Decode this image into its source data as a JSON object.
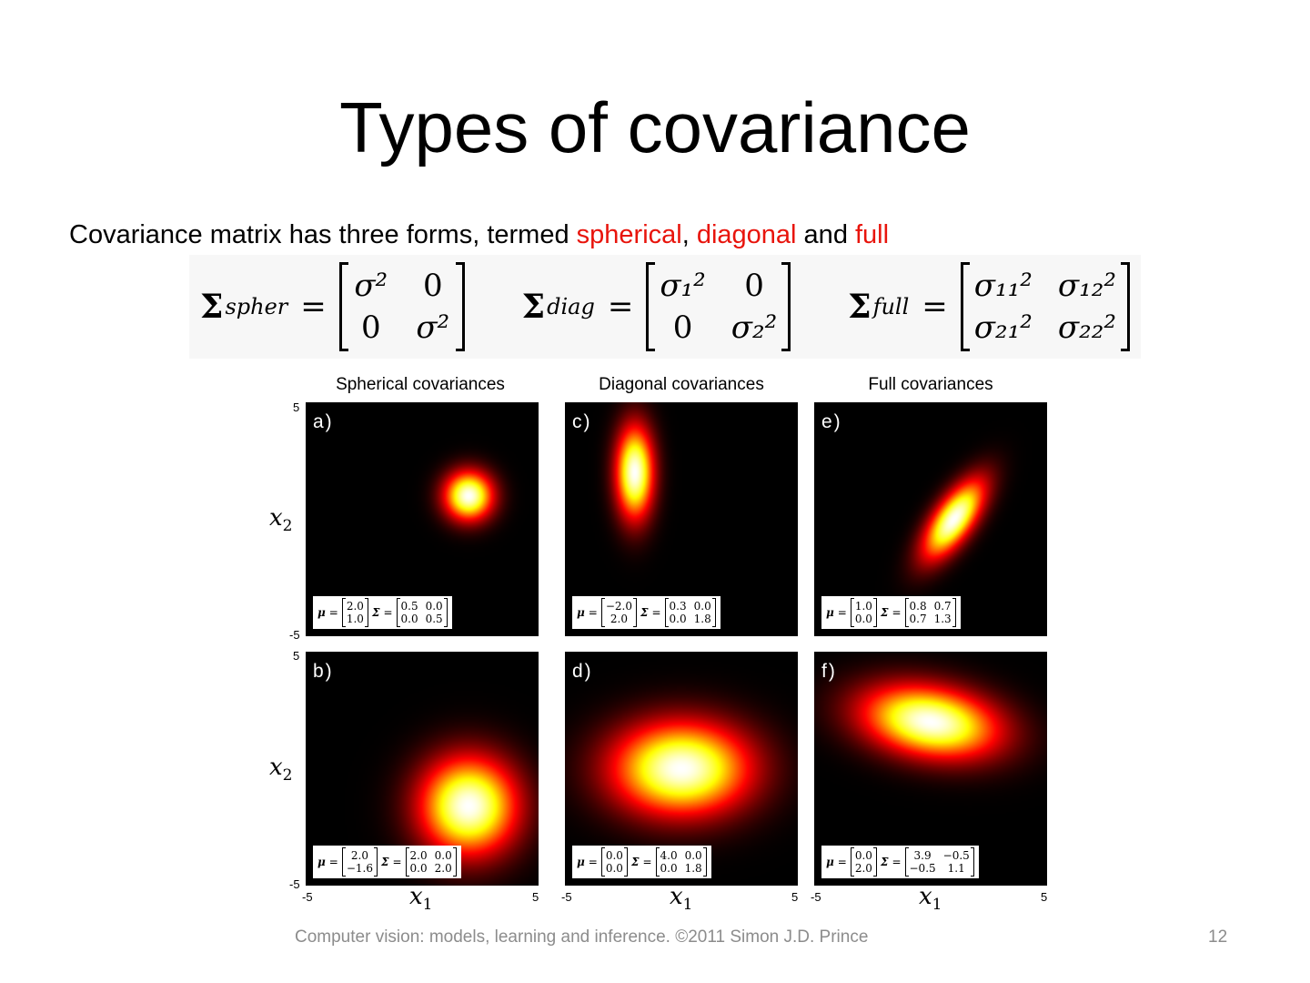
{
  "slide": {
    "title": "Types of covariance",
    "bullet": {
      "prefix": "Covariance matrix has three forms, termed ",
      "term1": "spherical",
      "sep1": ", ",
      "term2": "diagonal",
      "sep2": " and ",
      "term3": "full",
      "highlight_color": "#e8140c"
    },
    "equations": [
      {
        "symbol": "Σ",
        "subscript": "spher",
        "equals": "=",
        "cells": [
          "σ²",
          "0",
          "0",
          "σ²"
        ]
      },
      {
        "symbol": "Σ",
        "subscript": "diag",
        "equals": "=",
        "cells": [
          "σ₁²",
          "0",
          "0",
          "σ₂²"
        ]
      },
      {
        "symbol": "Σ",
        "subscript": "full",
        "equals": "=",
        "cells": [
          "σ₁₁²",
          "σ₁₂²",
          "σ₂₁²",
          "σ₂₂²"
        ]
      }
    ],
    "footer": "Computer vision: models, learning and inference.  ©2011 Simon J.D. Prince",
    "page_number": "12"
  },
  "figure": {
    "column_titles": [
      "Spherical covariances",
      "Diagonal covariances",
      "Full covariances"
    ],
    "axis_labels": {
      "x": "x",
      "x_sub": "1",
      "y": "x",
      "y_sub": "2"
    },
    "ticks": {
      "min": "-5",
      "max": "5"
    },
    "colormap": [
      "#000000",
      "#ff0000",
      "#ffff00",
      "#ffffff"
    ],
    "panels": [
      {
        "label": "a)",
        "mu": [
          2.0,
          1.0
        ],
        "sigma": [
          [
            0.5,
            0.0
          ],
          [
            0.0,
            0.5
          ]
        ],
        "mu_text": [
          "2.0",
          "1.0"
        ],
        "sigma_text": [
          "0.5",
          "0.0",
          "0.0",
          "0.5"
        ]
      },
      {
        "label": "c)",
        "mu": [
          -2.0,
          2.0
        ],
        "sigma": [
          [
            0.3,
            0.0
          ],
          [
            0.0,
            1.8
          ]
        ],
        "mu_text": [
          "−2.0",
          "2.0"
        ],
        "sigma_text": [
          "0.3",
          "0.0",
          "0.0",
          "1.8"
        ]
      },
      {
        "label": "e)",
        "mu": [
          1.0,
          0.0
        ],
        "sigma": [
          [
            0.8,
            0.7
          ],
          [
            0.7,
            1.3
          ]
        ],
        "mu_text": [
          "1.0",
          "0.0"
        ],
        "sigma_text": [
          "0.8",
          "0.7",
          "0.7",
          "1.3"
        ]
      },
      {
        "label": "b)",
        "mu": [
          2.0,
          -1.6
        ],
        "sigma": [
          [
            2.0,
            0.0
          ],
          [
            0.0,
            2.0
          ]
        ],
        "mu_text": [
          "2.0",
          "−1.6"
        ],
        "sigma_text": [
          "2.0",
          "0.0",
          "0.0",
          "2.0"
        ]
      },
      {
        "label": "d)",
        "mu": [
          0.0,
          0.0
        ],
        "sigma": [
          [
            4.0,
            0.0
          ],
          [
            0.0,
            1.8
          ]
        ],
        "mu_text": [
          "0.0",
          "0.0"
        ],
        "sigma_text": [
          "4.0",
          "0.0",
          "0.0",
          "1.8"
        ]
      },
      {
        "label": "f)",
        "mu": [
          0.0,
          2.0
        ],
        "sigma": [
          [
            3.9,
            -0.5
          ],
          [
            -0.5,
            1.1
          ]
        ],
        "mu_text": [
          "0.0",
          "2.0"
        ],
        "sigma_text": [
          "3.9",
          "−0.5",
          "−0.5",
          "1.1"
        ]
      }
    ],
    "mu_symbol": "μ",
    "sigma_symbol": "Σ",
    "equals": "="
  }
}
